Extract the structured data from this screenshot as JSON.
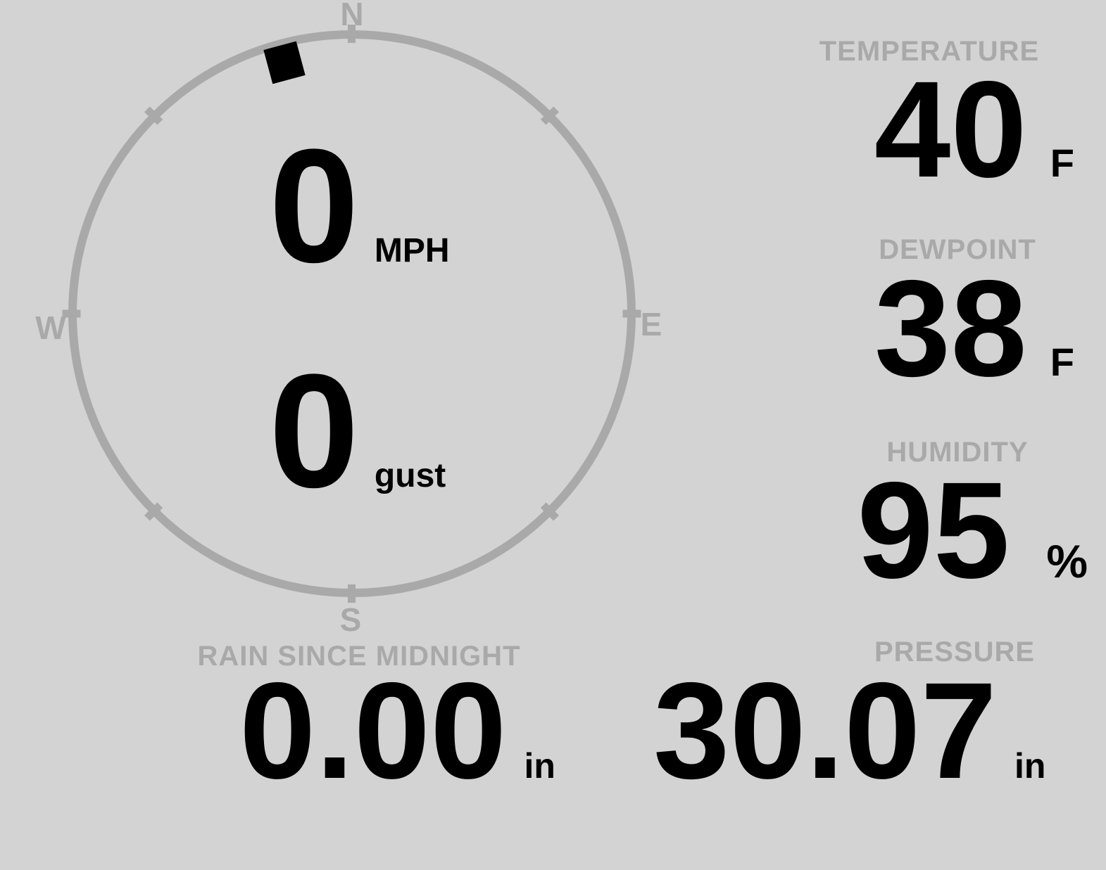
{
  "colors": {
    "background": "#d3d3d3",
    "muted_gray": "#a9a9a9",
    "value_black": "#000000"
  },
  "compass": {
    "cardinals": {
      "north": "N",
      "east": "E",
      "south": "S",
      "west": "W"
    },
    "direction_marker_deg": 345,
    "speed": {
      "value": "0",
      "unit": "MPH"
    },
    "gust": {
      "value": "0",
      "unit": "gust"
    }
  },
  "stats": [
    {
      "id": "temperature",
      "label": "TEMPERATURE",
      "value": "40",
      "unit": "F"
    },
    {
      "id": "dewpoint",
      "label": "DEWPOINT",
      "value": "38",
      "unit": "F"
    },
    {
      "id": "humidity",
      "label": "HUMIDITY",
      "value": "95",
      "unit": "%"
    }
  ],
  "bottom": [
    {
      "id": "rain",
      "label": "RAIN SINCE MIDNIGHT",
      "value": "0.00",
      "unit": "in"
    },
    {
      "id": "pressure",
      "label": "PRESSURE",
      "value": "30.07",
      "unit": "in"
    }
  ]
}
